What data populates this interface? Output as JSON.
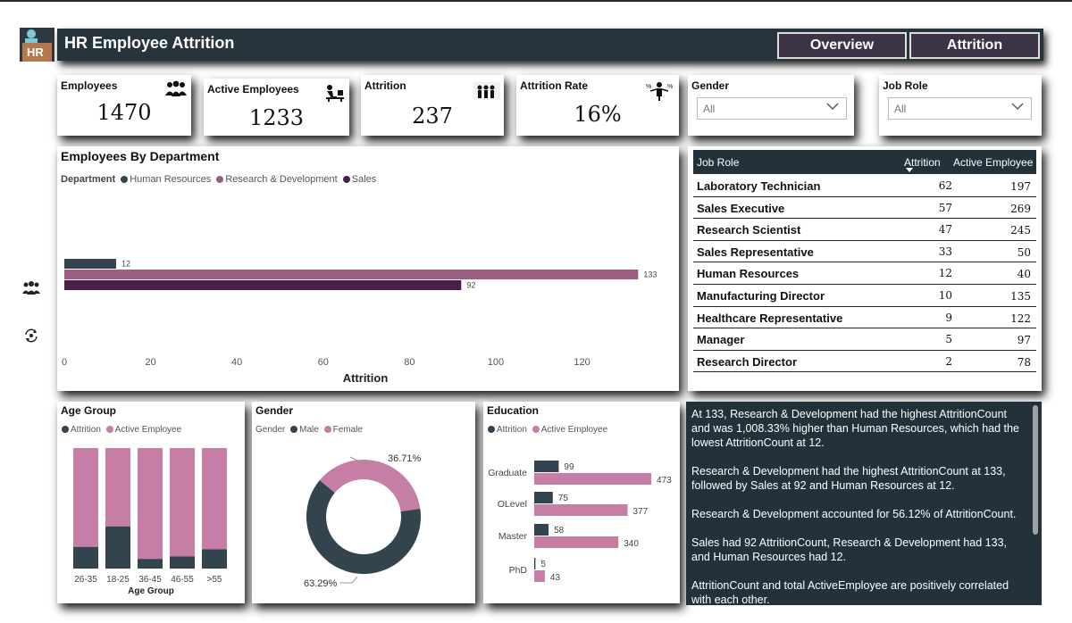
{
  "header": {
    "logo_text": "HR",
    "title": "HR Employee Attrition",
    "nav_overview": "Overview",
    "nav_attrition": "Attrition"
  },
  "kpis": {
    "employees_label": "Employees",
    "employees_value": "1470",
    "active_label": "Active Employees",
    "active_value": "1233",
    "attrition_label": "Attrition",
    "attrition_value": "237",
    "rate_label": "Attrition Rate",
    "rate_value": "16%"
  },
  "slicers": {
    "gender_label": "Gender",
    "gender_value": "All",
    "jobrole_label": "Job Role",
    "jobrole_value": "All"
  },
  "colors": {
    "dark": "#34444f",
    "mid": "#9b5d80",
    "deep": "#4a1f47",
    "pink": "#c67ea6",
    "header": "#27343b"
  },
  "dept_chart": {
    "title": "Employees By Department",
    "legend_title": "Department",
    "chart_data": {
      "type": "bar",
      "orientation": "horizontal",
      "series": [
        {
          "name": "Human Resources",
          "values": [
            12
          ]
        },
        {
          "name": "Research & Development",
          "values": [
            133
          ]
        },
        {
          "name": "Sales",
          "values": [
            92
          ]
        }
      ],
      "xlabel": "Attrition",
      "xlim": [
        0,
        135
      ],
      "xticks": [
        "0",
        "20",
        "40",
        "60",
        "80",
        "100",
        "120"
      ]
    }
  },
  "job_table": {
    "headers": [
      "Job Role",
      "Attrition",
      "Active Employee"
    ],
    "rows": [
      {
        "role": "Laboratory Technician",
        "attrition": "62",
        "active": "197"
      },
      {
        "role": "Sales Executive",
        "attrition": "57",
        "active": "269"
      },
      {
        "role": "Research Scientist",
        "attrition": "47",
        "active": "245"
      },
      {
        "role": "Sales Representative",
        "attrition": "33",
        "active": "50"
      },
      {
        "role": "Human Resources",
        "attrition": "12",
        "active": "40"
      },
      {
        "role": "Manufacturing Director",
        "attrition": "10",
        "active": "135"
      },
      {
        "role": "Healthcare Representative",
        "attrition": "9",
        "active": "122"
      },
      {
        "role": "Manager",
        "attrition": "5",
        "active": "97"
      },
      {
        "role": "Research Director",
        "attrition": "2",
        "active": "78"
      }
    ]
  },
  "age_chart": {
    "title": "Age Group",
    "chart_data": {
      "type": "bar",
      "stacked": true,
      "categories": [
        "26-35",
        "18-25",
        "36-45",
        "46-55",
        ">55"
      ],
      "series": [
        {
          "name": "Attrition",
          "values": [
            0.18,
            0.35,
            0.08,
            0.1,
            0.16
          ]
        },
        {
          "name": "Active Employee",
          "values": [
            0.82,
            0.65,
            0.92,
            0.9,
            0.84
          ]
        }
      ],
      "xlabel": "Age Group",
      "note_units": "share of 100% stacked column"
    }
  },
  "gender_chart": {
    "title": "Gender",
    "legend_title": "Gender",
    "chart_data": {
      "type": "pie",
      "donut": true,
      "categories": [
        "Male",
        "Female"
      ],
      "values": [
        63.29,
        36.71
      ],
      "labels": [
        "63.29%",
        "36.71%"
      ]
    }
  },
  "edu_chart": {
    "title": "Education",
    "chart_data": {
      "type": "bar",
      "orientation": "horizontal",
      "categories": [
        "Graduate",
        "OLevel",
        "Master",
        "PhD"
      ],
      "series": [
        {
          "name": "Attrition",
          "values": [
            99,
            75,
            58,
            5
          ]
        },
        {
          "name": "Active Employee",
          "values": [
            473,
            377,
            340,
            43
          ]
        }
      ],
      "xlim": [
        0,
        480
      ]
    }
  },
  "narrative": [
    "At 133, Research & Development had the highest AttritionCount and was 1,008.33% higher than Human Resources, which had the lowest AttritionCount at 12.",
    "Research & Development had the highest AttritionCount at 133, followed by Sales at 92 and Human Resources at 12.",
    "Research & Development accounted for 56.12% of AttritionCount.",
    "Sales had 92 AttritionCount, Research & Development had 133, and Human Resources had 12.",
    "AttritionCount and total ActiveEmployee are positively correlated with each other."
  ],
  "sidebar": {
    "people_icon": "people-icon",
    "refresh_icon": "refresh-icon"
  }
}
